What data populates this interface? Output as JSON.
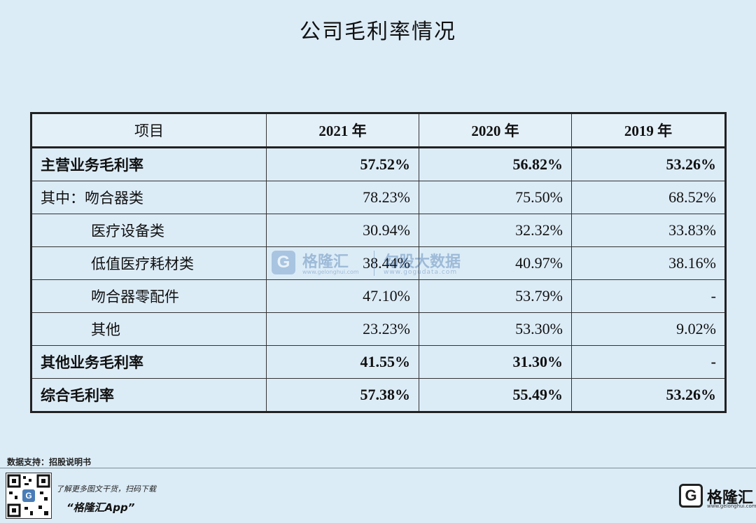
{
  "title": "公司毛利率情况",
  "table": {
    "headers": [
      "项目",
      "2021 年",
      "2020 年",
      "2019 年"
    ],
    "rows": [
      {
        "label": "主营业务毛利率",
        "values": [
          "57.52%",
          "56.82%",
          "53.26%"
        ]
      },
      {
        "label": "其中：吻合器类",
        "values": [
          "78.23%",
          "75.50%",
          "68.52%"
        ]
      },
      {
        "label": "医疗设备类",
        "values": [
          "30.94%",
          "32.32%",
          "33.83%"
        ]
      },
      {
        "label": "低值医疗耗材类",
        "values": [
          "38.44%",
          "40.97%",
          "38.16%"
        ]
      },
      {
        "label": "吻合器零配件",
        "values": [
          "47.10%",
          "53.79%",
          "-"
        ]
      },
      {
        "label": "其他",
        "values": [
          "23.23%",
          "53.30%",
          "9.02%"
        ]
      },
      {
        "label": "其他业务毛利率",
        "values": [
          "41.55%",
          "31.30%",
          "-"
        ]
      },
      {
        "label": "综合毛利率",
        "values": [
          "57.38%",
          "55.49%",
          "53.26%"
        ]
      }
    ]
  },
  "watermark": {
    "brand": "格隆汇",
    "brand_url": "www.gelonghui.com",
    "product": "勾股大数据",
    "product_url": "www.gogudata.com"
  },
  "footer": {
    "source": "数据支持：招股说明书",
    "promo_line": "了解更多图文干货，扫码下载",
    "app_name": "“格隆汇App”",
    "brand_name": "格隆汇",
    "brand_url": "www.gelonghui.com"
  }
}
